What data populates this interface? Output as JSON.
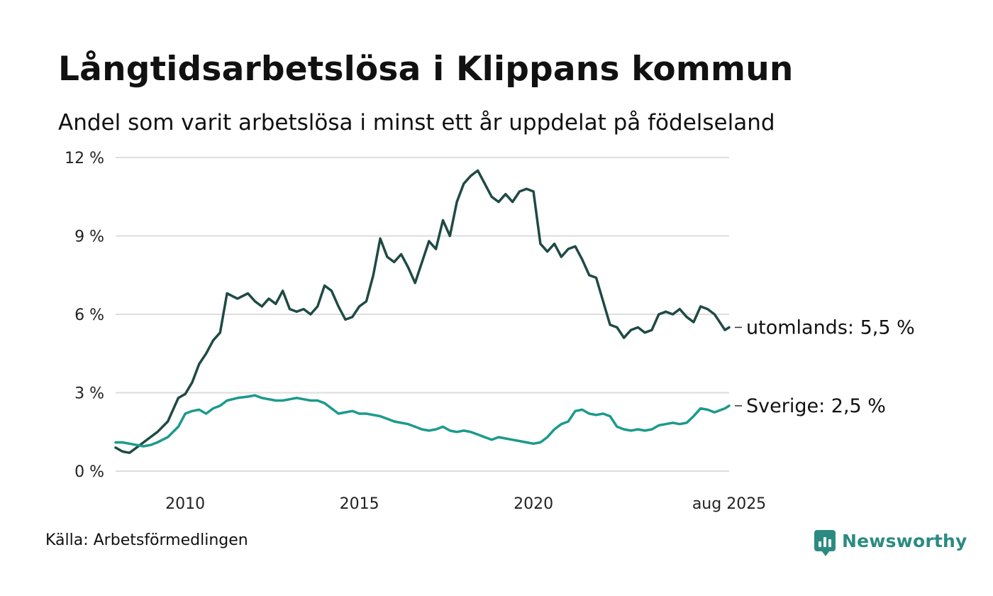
{
  "header": {
    "title": "Långtidsarbetslösa i Klippans kommun",
    "subtitle": "Andel som varit arbetslösa i minst ett år uppdelat på födelseland"
  },
  "footer": {
    "source": "Källa: Arbetsförmedlingen",
    "brand": "Newsworthy"
  },
  "chart_data": {
    "type": "line",
    "title": "Långtidsarbetslösa i Klippans kommun",
    "subtitle": "Andel som varit arbetslösa i minst ett år uppdelat på födelseland",
    "xlim": [
      2008.0,
      2025.62
    ],
    "ylim": [
      0,
      12
    ],
    "yticks": [
      0,
      3,
      6,
      9,
      12
    ],
    "ytick_labels": [
      "0 %",
      "3 %",
      "6 %",
      "9 %",
      "12 %"
    ],
    "xticks": [
      2010,
      2015,
      2020,
      2025.62
    ],
    "xtick_labels": [
      "2010",
      "2015",
      "2020",
      "aug 2025"
    ],
    "grid": true,
    "legend": "direct labels at line ends",
    "series": [
      {
        "name": "utomlands",
        "end_label": "utomlands: 5,5 %",
        "color": "#1f4a44",
        "x": [
          2008.0,
          2008.2,
          2008.4,
          2008.6,
          2008.8,
          2009.0,
          2009.2,
          2009.5,
          2009.8,
          2010.0,
          2010.2,
          2010.4,
          2010.6,
          2010.8,
          2011.0,
          2011.2,
          2011.5,
          2011.8,
          2012.0,
          2012.2,
          2012.4,
          2012.6,
          2012.8,
          2013.0,
          2013.2,
          2013.4,
          2013.6,
          2013.8,
          2014.0,
          2014.2,
          2014.4,
          2014.6,
          2014.8,
          2015.0,
          2015.2,
          2015.4,
          2015.6,
          2015.8,
          2016.0,
          2016.2,
          2016.4,
          2016.6,
          2016.8,
          2017.0,
          2017.2,
          2017.4,
          2017.6,
          2017.8,
          2018.0,
          2018.2,
          2018.4,
          2018.6,
          2018.8,
          2019.0,
          2019.2,
          2019.4,
          2019.6,
          2019.8,
          2019.9,
          2020.0,
          2020.2,
          2020.4,
          2020.6,
          2020.8,
          2021.0,
          2021.2,
          2021.4,
          2021.6,
          2021.8,
          2022.0,
          2022.2,
          2022.4,
          2022.6,
          2022.8,
          2023.0,
          2023.2,
          2023.4,
          2023.6,
          2023.8,
          2024.0,
          2024.2,
          2024.4,
          2024.6,
          2024.8,
          2025.0,
          2025.2,
          2025.4,
          2025.5,
          2025.62
        ],
        "values": [
          0.9,
          0.75,
          0.7,
          0.9,
          1.1,
          1.3,
          1.5,
          1.9,
          2.8,
          2.95,
          3.4,
          4.1,
          4.5,
          5.0,
          5.3,
          6.8,
          6.6,
          6.8,
          6.5,
          6.3,
          6.6,
          6.4,
          6.9,
          6.2,
          6.1,
          6.2,
          6.0,
          6.3,
          7.1,
          6.9,
          6.3,
          5.8,
          5.9,
          6.3,
          6.5,
          7.5,
          8.9,
          8.2,
          8.0,
          8.3,
          7.8,
          7.2,
          8.0,
          8.8,
          8.5,
          9.6,
          9.0,
          10.3,
          11.0,
          11.3,
          11.5,
          11.0,
          10.5,
          10.3,
          10.6,
          10.3,
          10.7,
          10.8,
          10.75,
          10.7,
          8.7,
          8.4,
          8.7,
          8.2,
          8.5,
          8.6,
          8.1,
          7.5,
          7.4,
          6.5,
          5.6,
          5.5,
          5.1,
          5.4,
          5.5,
          5.3,
          5.4,
          6.0,
          6.1,
          6.0,
          6.2,
          5.9,
          5.7,
          6.3,
          6.2,
          6.0,
          5.6,
          5.4,
          5.5
        ]
      },
      {
        "name": "Sverige",
        "end_label": "Sverige: 2,5 %",
        "color": "#1b9a8c",
        "x": [
          2008.0,
          2008.2,
          2008.4,
          2008.6,
          2008.8,
          2009.0,
          2009.2,
          2009.5,
          2009.8,
          2010.0,
          2010.2,
          2010.4,
          2010.6,
          2010.8,
          2011.0,
          2011.2,
          2011.5,
          2011.8,
          2012.0,
          2012.2,
          2012.4,
          2012.6,
          2012.8,
          2013.0,
          2013.2,
          2013.4,
          2013.6,
          2013.8,
          2014.0,
          2014.2,
          2014.4,
          2014.6,
          2014.8,
          2015.0,
          2015.2,
          2015.4,
          2015.6,
          2015.8,
          2016.0,
          2016.2,
          2016.4,
          2016.6,
          2016.8,
          2017.0,
          2017.2,
          2017.4,
          2017.6,
          2017.8,
          2018.0,
          2018.2,
          2018.4,
          2018.6,
          2018.8,
          2019.0,
          2019.2,
          2019.4,
          2019.6,
          2019.8,
          2020.0,
          2020.2,
          2020.4,
          2020.6,
          2020.8,
          2021.0,
          2021.2,
          2021.4,
          2021.6,
          2021.8,
          2022.0,
          2022.2,
          2022.4,
          2022.6,
          2022.8,
          2023.0,
          2023.2,
          2023.4,
          2023.6,
          2023.8,
          2024.0,
          2024.2,
          2024.4,
          2024.6,
          2024.8,
          2025.0,
          2025.2,
          2025.4,
          2025.5,
          2025.62
        ],
        "values": [
          1.1,
          1.1,
          1.05,
          1.0,
          0.95,
          1.0,
          1.1,
          1.3,
          1.7,
          2.2,
          2.3,
          2.35,
          2.2,
          2.4,
          2.5,
          2.7,
          2.8,
          2.85,
          2.9,
          2.8,
          2.75,
          2.7,
          2.7,
          2.75,
          2.8,
          2.75,
          2.7,
          2.7,
          2.6,
          2.4,
          2.2,
          2.25,
          2.3,
          2.2,
          2.2,
          2.15,
          2.1,
          2.0,
          1.9,
          1.85,
          1.8,
          1.7,
          1.6,
          1.55,
          1.6,
          1.7,
          1.55,
          1.5,
          1.55,
          1.5,
          1.4,
          1.3,
          1.2,
          1.3,
          1.25,
          1.2,
          1.15,
          1.1,
          1.05,
          1.1,
          1.3,
          1.6,
          1.8,
          1.9,
          2.3,
          2.35,
          2.2,
          2.15,
          2.2,
          2.1,
          1.7,
          1.6,
          1.55,
          1.6,
          1.55,
          1.6,
          1.75,
          1.8,
          1.85,
          1.8,
          1.85,
          2.1,
          2.4,
          2.35,
          2.25,
          2.35,
          2.4,
          2.5
        ]
      }
    ]
  }
}
